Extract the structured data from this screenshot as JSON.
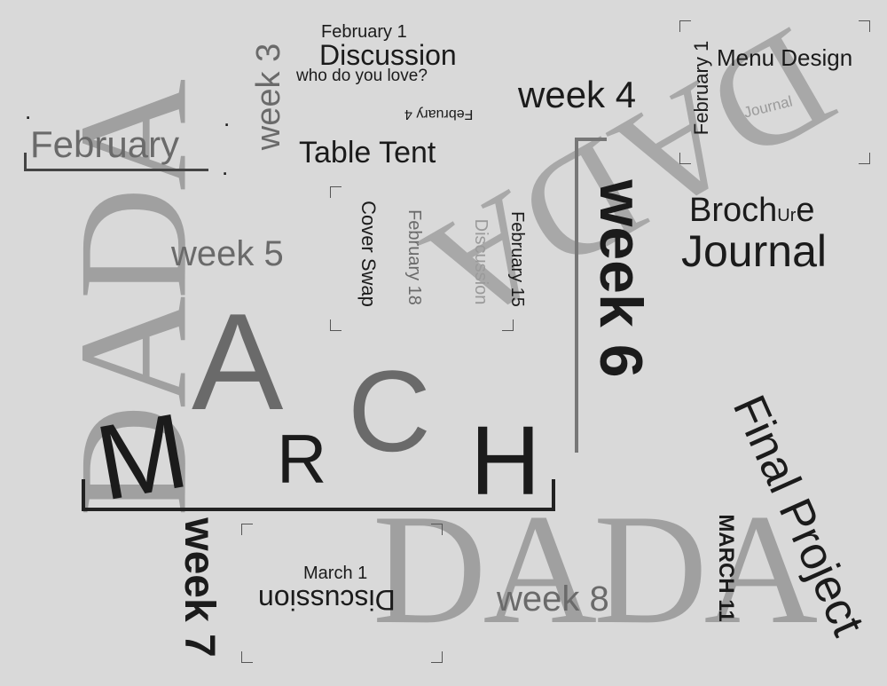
{
  "dada_words": {
    "left": "DADA",
    "top_right": "DADA",
    "bottom": "DADA"
  },
  "month_labels": {
    "february": "February",
    "march_letters": [
      "M",
      "A",
      "R",
      "C",
      "H"
    ]
  },
  "weeks": {
    "week3": "week 3",
    "week4": "week 4",
    "week5": "week 5",
    "week6": "week 6",
    "week7": "week 7",
    "week8": "week 8"
  },
  "assignments": {
    "feb1_date": "February 1",
    "feb1_title": "Discussion",
    "feb1_subtitle": "who do you love?",
    "feb4_date": "February 4",
    "table_tent": "Table Tent",
    "feb1_menu_date": "February 1",
    "menu_design": "Menu Design",
    "journal_small": "Journal",
    "brochure": "Brochure",
    "brochure_parts": [
      "Broc",
      "h",
      "U",
      "r",
      "e"
    ],
    "journal": "Journal",
    "cover_swap": "Cover Swap",
    "feb18": "February 18",
    "feb15": "February 15",
    "feb15_discussion": "Discussion",
    "final_project": "Final Project",
    "march11": "MARCH 11",
    "march1": "March 1",
    "march1_discussion": "Discussion"
  }
}
